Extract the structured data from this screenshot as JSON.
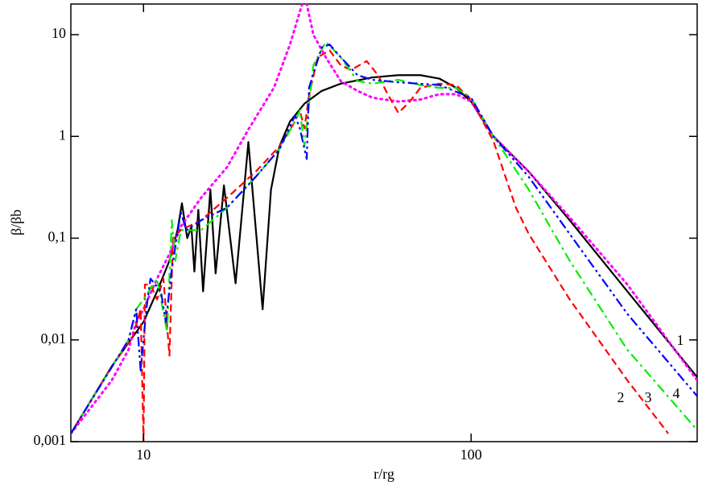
{
  "chart_data": {
    "type": "line",
    "xlabel": "r/rg",
    "ylabel": "β/βb",
    "xlog": true,
    "ylog": true,
    "xlim": [
      6,
      490
    ],
    "ylim": [
      0.001,
      20
    ],
    "xticks": [
      10,
      100
    ],
    "yticks": [
      {
        "value": 0.001,
        "label": "0,001"
      },
      {
        "value": 0.01,
        "label": "0,01"
      },
      {
        "value": 0.1,
        "label": "0,1"
      },
      1,
      10
    ],
    "series": [
      {
        "name": "1",
        "color": "#000000",
        "style": "solid",
        "x": [
          6,
          8,
          10,
          11,
          12,
          12.7,
          13.1,
          13.6,
          14.0,
          14.3,
          14.7,
          15.2,
          16.0,
          16.6,
          17.6,
          19.1,
          20.9,
          23.1,
          24.5,
          26,
          28,
          31,
          35,
          40,
          50,
          60,
          70,
          80,
          90,
          100,
          117,
          150,
          200,
          300,
          490
        ],
        "values": [
          0.0012,
          0.0055,
          0.015,
          0.03,
          0.06,
          0.12,
          0.22,
          0.1,
          0.13,
          0.047,
          0.19,
          0.03,
          0.3,
          0.045,
          0.33,
          0.036,
          0.88,
          0.02,
          0.3,
          0.8,
          1.4,
          2.1,
          2.8,
          3.3,
          3.8,
          4.0,
          4.0,
          3.7,
          3.0,
          2.2,
          1.0,
          0.45,
          0.15,
          0.03,
          0.0043
        ]
      },
      {
        "color": "#ff00ff",
        "style": "dotted",
        "x": [
          6,
          8,
          9,
          9.5,
          10,
          11,
          12,
          13,
          15,
          18,
          21,
          25,
          28,
          30.5,
          31.5,
          33,
          36,
          40,
          45,
          50,
          60,
          70,
          80,
          90,
          100,
          117,
          150,
          200,
          300,
          490
        ],
        "values": [
          0.0012,
          0.004,
          0.008,
          0.015,
          0.02,
          0.04,
          0.07,
          0.13,
          0.25,
          0.5,
          1.2,
          3,
          8,
          20,
          20,
          10,
          6,
          3.5,
          2.8,
          2.4,
          2.2,
          2.3,
          2.6,
          2.6,
          2.2,
          1.0,
          0.45,
          0.16,
          0.035,
          0.004
        ]
      },
      {
        "name": "2",
        "color": "#ff0000",
        "style": "dashed",
        "x": [
          6,
          8,
          9.3,
          9.8,
          10,
          10.1,
          10.5,
          11,
          11.5,
          12,
          12.3,
          13,
          15,
          18,
          22,
          26,
          29,
          30,
          31,
          32,
          34,
          37,
          40,
          43,
          48,
          52,
          56,
          60,
          65,
          70,
          80,
          90,
          100,
          117,
          137,
          150,
          200,
          300,
          400
        ],
        "values": [
          0.0012,
          0.0055,
          0.011,
          0.02,
          0.001,
          0.035,
          0.035,
          0.025,
          0.04,
          0.007,
          0.1,
          0.12,
          0.15,
          0.25,
          0.45,
          0.8,
          1.4,
          1.8,
          1.2,
          2.5,
          6,
          7,
          5,
          4.5,
          5.5,
          4,
          2.5,
          1.7,
          2.2,
          3,
          3.3,
          3.2,
          2.3,
          0.9,
          0.2,
          0.11,
          0.025,
          0.004,
          0.0012
        ]
      },
      {
        "name": "3",
        "color": "#00ee00",
        "style": "dashdot",
        "x": [
          6,
          9,
          9.5,
          10,
          11,
          11.8,
          12.2,
          12.5,
          13,
          15,
          18,
          22,
          26,
          29,
          30,
          31,
          33,
          36,
          40,
          45,
          50,
          60,
          70,
          80,
          90,
          100,
          117,
          150,
          200,
          300,
          490
        ],
        "values": [
          0.0012,
          0.01,
          0.02,
          0.025,
          0.04,
          0.012,
          0.15,
          0.06,
          0.12,
          0.12,
          0.2,
          0.4,
          0.75,
          1.4,
          1.8,
          0.8,
          5,
          8.5,
          6,
          3.5,
          3.3,
          3.6,
          3.2,
          3,
          3,
          2.4,
          1.0,
          0.3,
          0.06,
          0.008,
          0.0013
        ]
      },
      {
        "name": "4",
        "color": "#0000ff",
        "style": "dashdotdot",
        "x": [
          6,
          9,
          9.5,
          9.8,
          10.2,
          10.5,
          11.3,
          11.7,
          12.2,
          13,
          13.5,
          15,
          18,
          22,
          26,
          29,
          30,
          31.5,
          32,
          35,
          37,
          40,
          45,
          50,
          60,
          80,
          100,
          117,
          150,
          200,
          300,
          490
        ],
        "values": [
          0.0012,
          0.01,
          0.02,
          0.005,
          0.02,
          0.04,
          0.03,
          0.015,
          0.05,
          0.18,
          0.12,
          0.15,
          0.2,
          0.4,
          0.75,
          1.6,
          1.2,
          0.6,
          3,
          7.5,
          8,
          6,
          4,
          3.6,
          3.4,
          3.2,
          2.4,
          1.0,
          0.4,
          0.11,
          0.018,
          0.0028
        ]
      }
    ]
  }
}
